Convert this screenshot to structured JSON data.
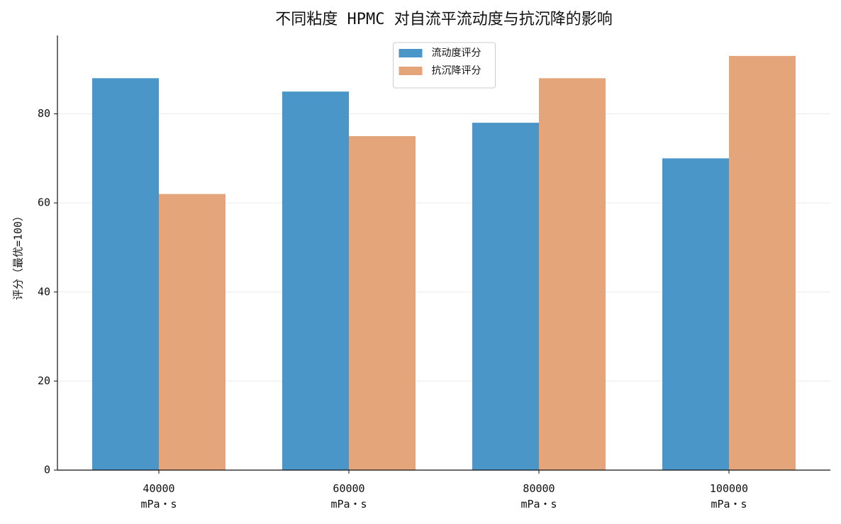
{
  "chart_data": {
    "type": "bar",
    "title": "不同粘度 HPMC 对自流平流动度与抗沉降的影响",
    "ylabel": "评分（最优=100）",
    "categories": [
      "40000\nmPa・s",
      "60000\nmPa・s",
      "80000\nmPa・s",
      "100000\nmPa・s"
    ],
    "series": [
      {
        "name": "流动度评分",
        "color": "#4a96c8",
        "values": [
          88,
          85,
          78,
          70
        ]
      },
      {
        "name": "抗沉降评分",
        "color": "#e5a57a",
        "values": [
          62,
          75,
          88,
          93
        ]
      }
    ],
    "ylim": [
      0,
      97.6
    ],
    "yticks": [
      0,
      20,
      40,
      60,
      80
    ],
    "grid": true,
    "legend": "upper center"
  }
}
